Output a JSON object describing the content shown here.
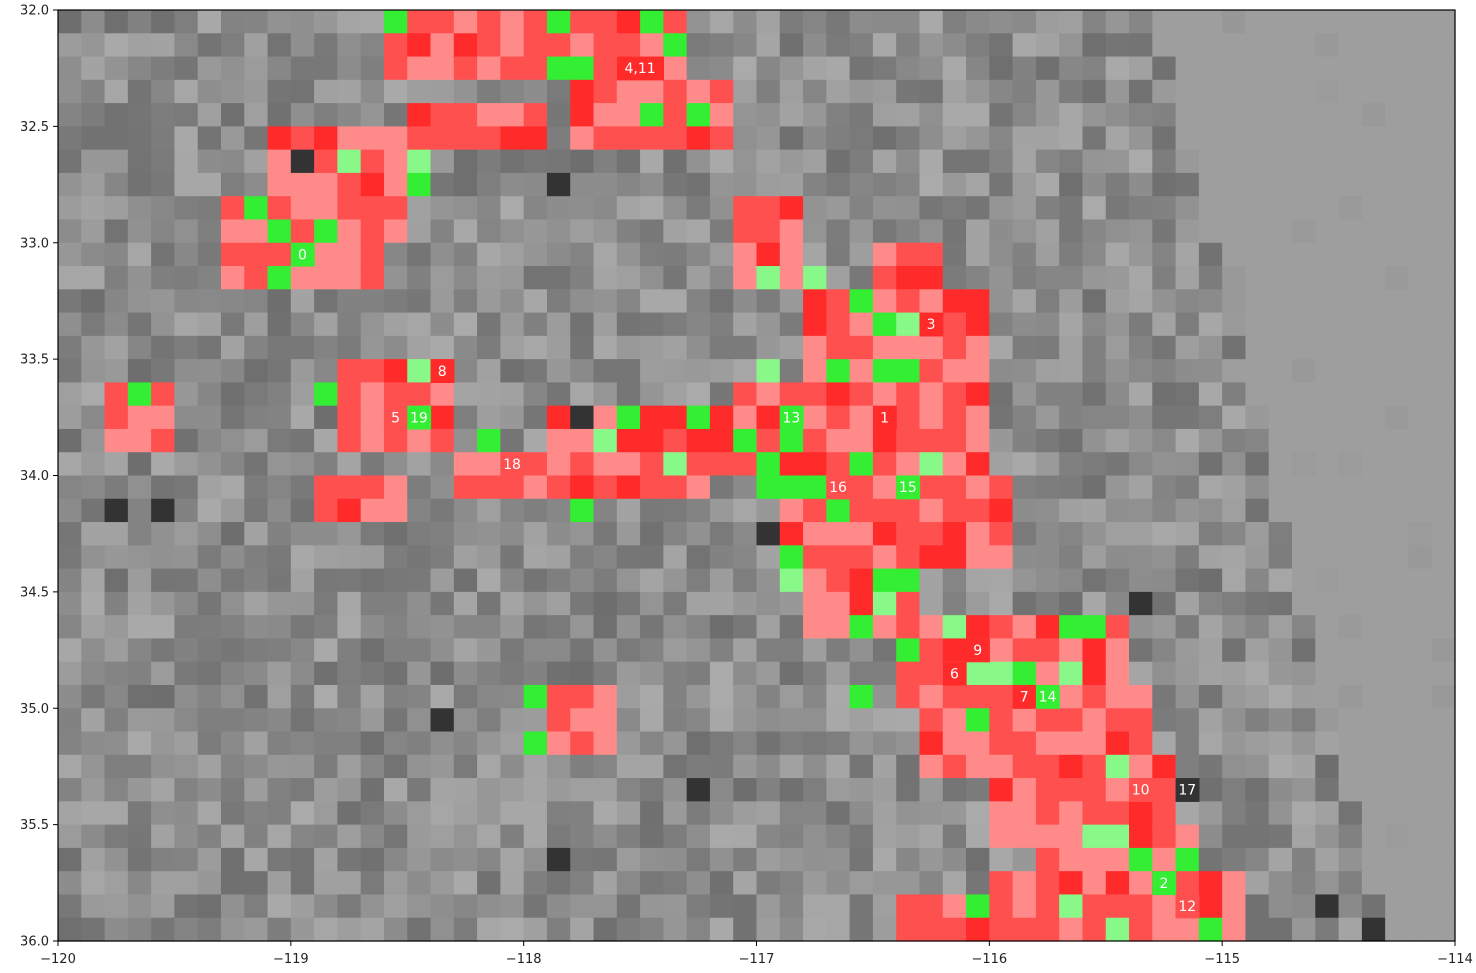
{
  "chart_data": {
    "type": "heatmap",
    "title": "",
    "xlabel": "",
    "ylabel": "",
    "xlim": [
      -120,
      -114
    ],
    "ylim": [
      32.0,
      36.0
    ],
    "y_axis_inverted": true,
    "grid": false,
    "cell_size_deg": 0.1,
    "x_ticks": [
      {
        "value": -120,
        "label": "−120"
      },
      {
        "value": -119,
        "label": "−119"
      },
      {
        "value": -118,
        "label": "−118"
      },
      {
        "value": -117,
        "label": "−117"
      },
      {
        "value": -116,
        "label": "−116"
      },
      {
        "value": -115,
        "label": "−115"
      },
      {
        "value": -114,
        "label": "−114"
      }
    ],
    "y_ticks": [
      {
        "value": 32.0,
        "label": "32.0"
      },
      {
        "value": 32.5,
        "label": "32.5"
      },
      {
        "value": 33.0,
        "label": "33.0"
      },
      {
        "value": 33.5,
        "label": "33.5"
      },
      {
        "value": 34.0,
        "label": "34.0"
      },
      {
        "value": 34.5,
        "label": "34.5"
      },
      {
        "value": 35.0,
        "label": "35.0"
      },
      {
        "value": 35.5,
        "label": "35.5"
      },
      {
        "value": 36.0,
        "label": "36.0"
      }
    ],
    "colors": {
      "background_gray": "#9b9b9b",
      "red": "#ff5050",
      "light_red": "#ff8a8a",
      "deep_red": "#ff2a2a",
      "green": "#33ee33",
      "light_green": "#88f888",
      "dark_cell": "#333333"
    },
    "annotations": [
      {
        "text": "0",
        "lon": -118.95,
        "lat": 33.05
      },
      {
        "text": "1",
        "lon": -116.45,
        "lat": 33.75
      },
      {
        "text": "2",
        "lon": -115.25,
        "lat": 35.75
      },
      {
        "text": "3",
        "lon": -116.25,
        "lat": 33.35
      },
      {
        "text": "4,11",
        "lon": -117.55,
        "lat": 32.25
      },
      {
        "text": "5",
        "lon": -118.55,
        "lat": 33.75
      },
      {
        "text": "6",
        "lon": -116.15,
        "lat": 34.85
      },
      {
        "text": "7",
        "lon": -115.85,
        "lat": 34.95
      },
      {
        "text": "8",
        "lon": -118.35,
        "lat": 33.55
      },
      {
        "text": "9",
        "lon": -116.05,
        "lat": 34.75
      },
      {
        "text": "10",
        "lon": -115.35,
        "lat": 35.35
      },
      {
        "text": "12",
        "lon": -115.15,
        "lat": 35.85
      },
      {
        "text": "13",
        "lon": -116.85,
        "lat": 33.75
      },
      {
        "text": "14",
        "lon": -115.75,
        "lat": 34.95
      },
      {
        "text": "15",
        "lon": -116.35,
        "lat": 34.05
      },
      {
        "text": "16",
        "lon": -116.65,
        "lat": 34.05
      },
      {
        "text": "17",
        "lon": -115.15,
        "lat": 35.35
      },
      {
        "text": "18",
        "lon": -118.05,
        "lat": 33.95
      },
      {
        "text": "19",
        "lon": -118.45,
        "lat": 33.75
      }
    ],
    "annotation_cell_colors": {
      "0": "green",
      "1": "deep_red",
      "2": "green",
      "3": "deep_red",
      "4,11": "deep_red",
      "5": "red",
      "6": "deep_red",
      "7": "deep_red",
      "8": "deep_red",
      "9": "deep_red",
      "10": "red",
      "12": "red",
      "13": "green",
      "14": "green",
      "15": "green",
      "16": "red",
      "17": "dark_cell",
      "18": "red",
      "19": "green"
    },
    "red_regions": [
      {
        "lon": [
          -118.6,
          -117.3
        ],
        "lat": [
          32.0,
          32.3
        ]
      },
      {
        "lon": [
          -117.8,
          -117.1
        ],
        "lat": [
          32.3,
          32.6
        ]
      },
      {
        "lon": [
          -118.5,
          -117.9
        ],
        "lat": [
          32.4,
          32.6
        ]
      },
      {
        "lon": [
          -119.1,
          -118.5
        ],
        "lat": [
          32.5,
          33.0
        ]
      },
      {
        "lon": [
          -119.3,
          -118.8
        ],
        "lat": [
          32.8,
          33.2
        ]
      },
      {
        "lon": [
          -119.2,
          -118.6
        ],
        "lat": [
          33.0,
          33.2
        ]
      },
      {
        "lon": [
          -117.1,
          -116.8
        ],
        "lat": [
          32.8,
          33.2
        ]
      },
      {
        "lon": [
          -116.5,
          -116.2
        ],
        "lat": [
          33.0,
          33.3
        ]
      },
      {
        "lon": [
          -116.8,
          -116.0
        ],
        "lat": [
          33.2,
          33.8
        ]
      },
      {
        "lon": [
          -118.8,
          -118.3
        ],
        "lat": [
          33.5,
          33.9
        ]
      },
      {
        "lon": [
          -119.8,
          -119.5
        ],
        "lat": [
          33.6,
          33.9
        ]
      },
      {
        "lon": [
          -117.1,
          -116.0
        ],
        "lat": [
          33.6,
          34.0
        ]
      },
      {
        "lon": [
          -117.9,
          -117.0
        ],
        "lat": [
          33.7,
          34.0
        ]
      },
      {
        "lon": [
          -118.3,
          -117.2
        ],
        "lat": [
          33.9,
          34.1
        ]
      },
      {
        "lon": [
          -118.9,
          -118.5
        ],
        "lat": [
          34.0,
          34.2
        ]
      },
      {
        "lon": [
          -116.9,
          -115.9
        ],
        "lat": [
          34.0,
          34.4
        ]
      },
      {
        "lon": [
          -116.8,
          -116.3
        ],
        "lat": [
          34.3,
          34.7
        ]
      },
      {
        "lon": [
          -116.4,
          -115.7
        ],
        "lat": [
          34.6,
          35.0
        ]
      },
      {
        "lon": [
          -115.8,
          -115.4
        ],
        "lat": [
          34.6,
          35.0
        ]
      },
      {
        "lon": [
          -116.3,
          -115.3
        ],
        "lat": [
          34.9,
          35.3
        ]
      },
      {
        "lon": [
          -117.9,
          -117.6
        ],
        "lat": [
          34.9,
          35.2
        ]
      },
      {
        "lon": [
          -116.0,
          -115.2
        ],
        "lat": [
          35.2,
          35.6
        ]
      },
      {
        "lon": [
          -115.8,
          -115.1
        ],
        "lat": [
          35.5,
          35.8
        ]
      },
      {
        "lon": [
          -116.0,
          -114.9
        ],
        "lat": [
          35.7,
          36.0
        ]
      },
      {
        "lon": [
          -116.4,
          -115.9
        ],
        "lat": [
          35.8,
          36.0
        ]
      }
    ],
    "green_cells": [
      [
        -118.55,
        32.05
      ],
      [
        -117.85,
        32.05
      ],
      [
        -117.45,
        32.05
      ],
      [
        -117.35,
        32.15
      ],
      [
        -117.85,
        32.25
      ],
      [
        -117.75,
        32.25
      ],
      [
        -117.45,
        32.45
      ],
      [
        -117.25,
        32.45
      ],
      [
        -118.75,
        32.65
      ],
      [
        -118.45,
        32.65
      ],
      [
        -118.45,
        32.75
      ],
      [
        -119.15,
        32.85
      ],
      [
        -119.05,
        32.95
      ],
      [
        -118.85,
        32.95
      ],
      [
        -119.05,
        33.15
      ],
      [
        -116.95,
        33.15
      ],
      [
        -116.75,
        33.15
      ],
      [
        -116.55,
        33.25
      ],
      [
        -116.45,
        33.35
      ],
      [
        -116.35,
        33.35
      ],
      [
        -116.45,
        33.55
      ],
      [
        -116.35,
        33.55
      ],
      [
        -116.65,
        33.55
      ],
      [
        -116.95,
        33.55
      ],
      [
        -118.45,
        33.55
      ],
      [
        -118.85,
        33.65
      ],
      [
        -119.65,
        33.65
      ],
      [
        -117.55,
        33.75
      ],
      [
        -117.25,
        33.75
      ],
      [
        -116.85,
        33.85
      ],
      [
        -117.05,
        33.85
      ],
      [
        -117.65,
        33.85
      ],
      [
        -118.15,
        33.85
      ],
      [
        -116.95,
        33.95
      ],
      [
        -117.35,
        33.95
      ],
      [
        -116.55,
        33.95
      ],
      [
        -116.25,
        33.95
      ],
      [
        -116.95,
        34.05
      ],
      [
        -116.75,
        34.05
      ],
      [
        -116.85,
        34.05
      ],
      [
        -116.65,
        34.15
      ],
      [
        -117.75,
        34.15
      ],
      [
        -116.85,
        34.35
      ],
      [
        -116.85,
        34.45
      ],
      [
        -116.45,
        34.45
      ],
      [
        -116.35,
        34.45
      ],
      [
        -116.45,
        34.55
      ],
      [
        -116.55,
        34.65
      ],
      [
        -116.15,
        34.65
      ],
      [
        -115.65,
        34.65
      ],
      [
        -115.55,
        34.65
      ],
      [
        -116.35,
        34.75
      ],
      [
        -116.05,
        34.85
      ],
      [
        -115.95,
        34.85
      ],
      [
        -115.85,
        34.85
      ],
      [
        -115.65,
        34.85
      ],
      [
        -116.55,
        34.95
      ],
      [
        -116.05,
        35.05
      ],
      [
        -117.95,
        34.95
      ],
      [
        -117.95,
        35.15
      ],
      [
        -115.45,
        35.25
      ],
      [
        -115.55,
        35.55
      ],
      [
        -115.45,
        35.55
      ],
      [
        -115.35,
        35.65
      ],
      [
        -115.15,
        35.65
      ],
      [
        -115.65,
        35.85
      ],
      [
        -116.05,
        35.85
      ],
      [
        -115.45,
        35.95
      ],
      [
        -115.05,
        35.95
      ]
    ],
    "dark_cells": [
      [
        -118.95,
        32.65
      ],
      [
        -117.85,
        32.75
      ],
      [
        -117.75,
        33.75
      ],
      [
        -119.75,
        34.15
      ],
      [
        -119.55,
        34.15
      ],
      [
        -116.95,
        34.25
      ],
      [
        -118.35,
        35.05
      ],
      [
        -115.35,
        34.55
      ],
      [
        -114.35,
        35.95
      ],
      [
        -114.55,
        35.85
      ],
      [
        -117.25,
        35.35
      ],
      [
        -117.85,
        35.65
      ]
    ]
  }
}
